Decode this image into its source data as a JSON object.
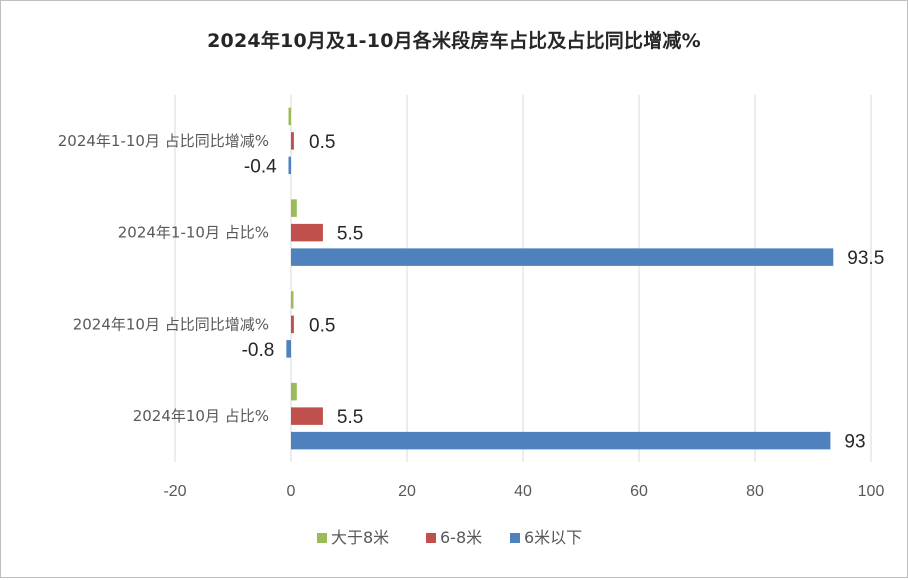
{
  "chart_data": {
    "type": "bar",
    "orientation": "horizontal",
    "title": "2024年10月及1-10月各米段房车占比及占比同比增减%",
    "categories": [
      "2024年10月 占比%",
      "2024年10月 占比同比增减%",
      "2024年1-10月 占比%",
      "2024年1-10月 占比同比增减%"
    ],
    "series": [
      {
        "name": "大于8米",
        "color": "#9BBB59",
        "values": [
          1.0,
          0,
          1.0,
          -0.1
        ],
        "labels": [
          "",
          "",
          "",
          ""
        ]
      },
      {
        "name": "6-8米",
        "color": "#C0504D",
        "values": [
          5.5,
          0.5,
          5.5,
          0.5
        ],
        "labels": [
          "5.5",
          "0.5",
          "5.5",
          "0.5"
        ]
      },
      {
        "name": "6米以下",
        "color": "#4F81BD",
        "values": [
          93,
          -0.8,
          93.5,
          -0.4
        ],
        "labels": [
          "93",
          "-0.8",
          "93.5",
          "-0.4"
        ]
      }
    ],
    "xlim": [
      -20,
      100
    ],
    "xticks": [
      "-20",
      "0",
      "20",
      "40",
      "60",
      "80",
      "100"
    ],
    "grid": true,
    "legend_position": "bottom"
  }
}
